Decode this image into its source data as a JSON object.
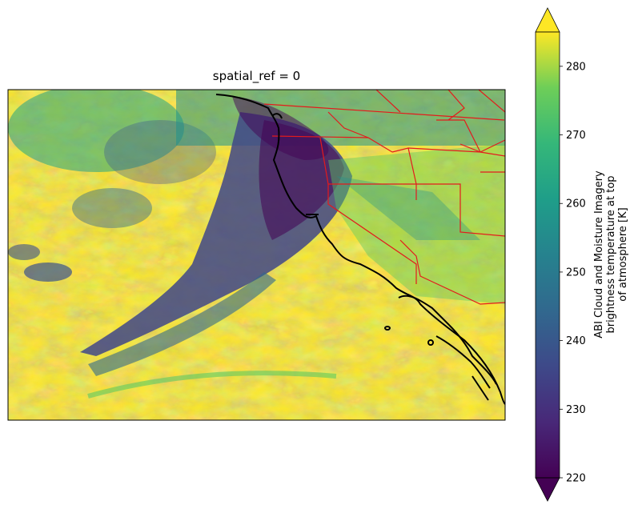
{
  "chart_data": {
    "type": "heatmap",
    "title": "spatial_ref = 0",
    "colormap": "viridis",
    "colorbar": {
      "label_lines": [
        "ABI Cloud and Moisture Imagery",
        "brightness temperature at top",
        "of atmosphere [K]"
      ],
      "vmin": 220,
      "vmax": 285,
      "extend": "both",
      "ticks": [
        220,
        230,
        240,
        250,
        260,
        270,
        280
      ],
      "tick_labels": [
        "220",
        "230",
        "240",
        "250",
        "260",
        "270",
        "280"
      ]
    },
    "field_description": "GOES ABI brightness temperature over the US West Coast and eastern Pacific",
    "overlays": {
      "coastline_color": "#000000",
      "state_border_color": "#e41a1c"
    }
  }
}
